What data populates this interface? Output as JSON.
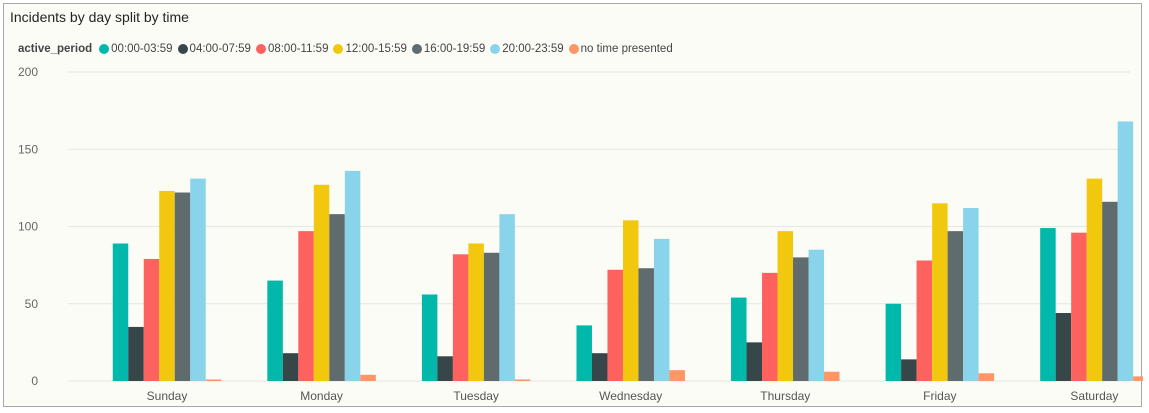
{
  "chart_data": {
    "type": "bar",
    "title": "Incidents by day split by time",
    "legend_title": "active_period",
    "legend_position": "top-left",
    "grid": true,
    "xlabel": "",
    "ylabel": "",
    "ylim": [
      0,
      200
    ],
    "yticks": [
      0,
      50,
      100,
      150,
      200
    ],
    "categories": [
      "Sunday",
      "Monday",
      "Tuesday",
      "Wednesday",
      "Thursday",
      "Friday",
      "Saturday"
    ],
    "series": [
      {
        "name": "00:00-03:59",
        "color": "#01b8aa",
        "values": [
          89,
          65,
          56,
          36,
          54,
          50,
          99
        ]
      },
      {
        "name": "04:00-07:59",
        "color": "#374649",
        "values": [
          35,
          18,
          16,
          18,
          25,
          14,
          44
        ]
      },
      {
        "name": "08:00-11:59",
        "color": "#fd625e",
        "values": [
          79,
          97,
          82,
          72,
          70,
          78,
          96
        ]
      },
      {
        "name": "12:00-15:59",
        "color": "#f2c80f",
        "values": [
          123,
          127,
          89,
          104,
          97,
          115,
          131
        ]
      },
      {
        "name": "16:00-19:59",
        "color": "#5f6b6d",
        "values": [
          122,
          108,
          83,
          73,
          80,
          97,
          116
        ]
      },
      {
        "name": "20:00-23:59",
        "color": "#8ad4eb",
        "values": [
          131,
          136,
          108,
          92,
          85,
          112,
          168
        ]
      },
      {
        "name": "no time presented",
        "color": "#fe9666",
        "values": [
          1,
          4,
          1,
          7,
          6,
          5,
          3
        ]
      }
    ]
  }
}
